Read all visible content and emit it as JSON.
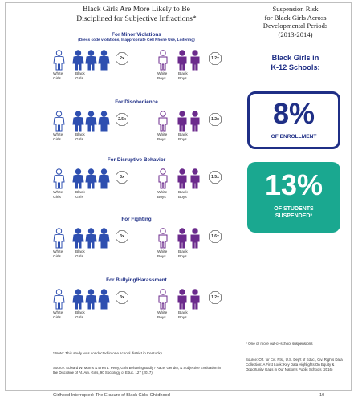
{
  "main_title_line1": "Black Girls Are More Likely to Be",
  "main_title_line2": "Disciplined for Subjective Infractions*",
  "sections": [
    {
      "title": "For Minor Violations",
      "subtitle": "(Dress code violations, Inappropriate Cell Phone Use, Loitering)",
      "girls_ratio": "2x",
      "boys_ratio": "1.2x"
    },
    {
      "title": "For Disobedience",
      "subtitle": "",
      "girls_ratio": "2.5x",
      "boys_ratio": "1.2x"
    },
    {
      "title": "For Disruptive Behavior",
      "subtitle": "",
      "girls_ratio": "3x",
      "boys_ratio": "1.5x"
    },
    {
      "title": "For Fighting",
      "subtitle": "",
      "girls_ratio": "3x",
      "boys_ratio": "1.6x"
    },
    {
      "title": "For Bullying/Harassment",
      "subtitle": "",
      "girls_ratio": "3x",
      "boys_ratio": "1.2x"
    }
  ],
  "labels": {
    "white_girls_1": "White",
    "white_girls_2": "Girls",
    "black_girls_1": "Black",
    "black_girls_2": "Girls",
    "white_boys_1": "White",
    "white_boys_2": "Boys",
    "black_boys_1": "Black",
    "black_boys_2": "Boys"
  },
  "note": "* Note: This study was conducted in one school district in Kentucky.",
  "source": "Source: Edward W. Morris & Brea L. Perry, Girls Behaving Badly? Race, Gender, & Subjective Evaluation in the Discipline of Af. Am. Girls, 90 Sociology of Educ. 127 (2017).",
  "right_title_line1": "Suspension Risk",
  "right_title_line2": "for Black Girls Across",
  "right_title_line3": "Developmental Periods",
  "right_title_line4": "(2013-2014)",
  "right_heading_line1": "Black Girls in",
  "right_heading_line2": "K-12 Schools:",
  "stat1_value": "8%",
  "stat1_caption": "OF ENROLLMENT",
  "stat2_value": "13%",
  "stat2_caption_line1": "OF STUDENTS",
  "stat2_caption_line2": "SUSPENDED*",
  "right_note": "* One or more out-of-school suspensions",
  "right_source": "Source: Off. for Civ. Rts., U.S. Dep't of Educ., Civ. Rights Data Collection: A First Look: Key Data Highlights On Equity & Opportunity Gaps in Our Nation's Public Schools (2016)",
  "footer_left": "Girlhood Interrupted: The Erasure of Black Girls' Childhood",
  "footer_right": "10",
  "colors": {
    "navy": "#1f2f86",
    "blue": "#2e4fb0",
    "purple": "#6b2a8c",
    "teal": "#1aa890"
  }
}
